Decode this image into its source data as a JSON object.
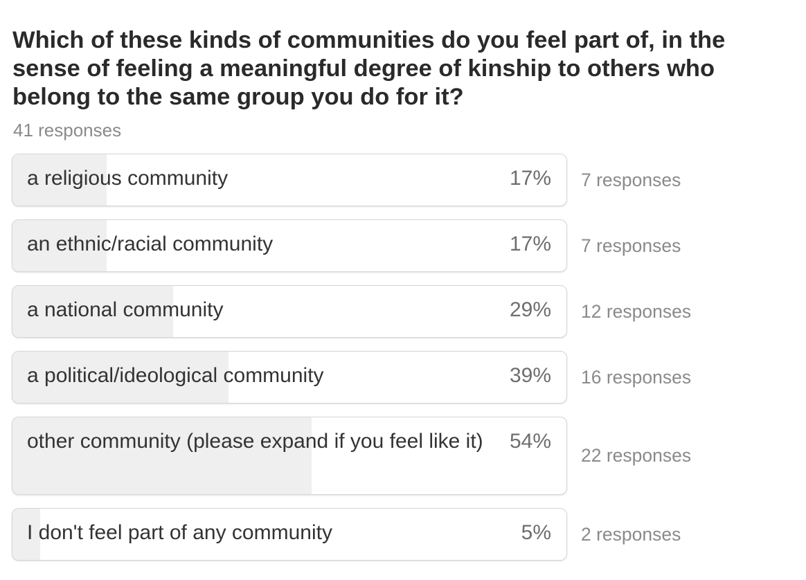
{
  "question": "Which of these kinds of communities do you feel part of, in the sense of feeling a meaningful degree of kinship to others who belong to the same group you do for it?",
  "total_responses": "41 responses",
  "options": [
    {
      "label": "a religious community",
      "percent_text": "17%",
      "percent": 17,
      "responses": "7 responses"
    },
    {
      "label": "an ethnic/racial community",
      "percent_text": "17%",
      "percent": 17,
      "responses": "7 responses"
    },
    {
      "label": "a national community",
      "percent_text": "29%",
      "percent": 29,
      "responses": "12 responses"
    },
    {
      "label": "a political/ideological community",
      "percent_text": "39%",
      "percent": 39,
      "responses": "16 responses"
    },
    {
      "label": "other community (please expand if you feel like it)",
      "percent_text": "54%",
      "percent": 54,
      "responses": "22 responses"
    },
    {
      "label": "I don't feel part of any community",
      "percent_text": "5%",
      "percent": 5,
      "responses": "2 responses"
    }
  ],
  "colors": {
    "bar_fill": "#efefef",
    "border": "#d6d6d6",
    "muted_text": "#8a8a8a"
  }
}
